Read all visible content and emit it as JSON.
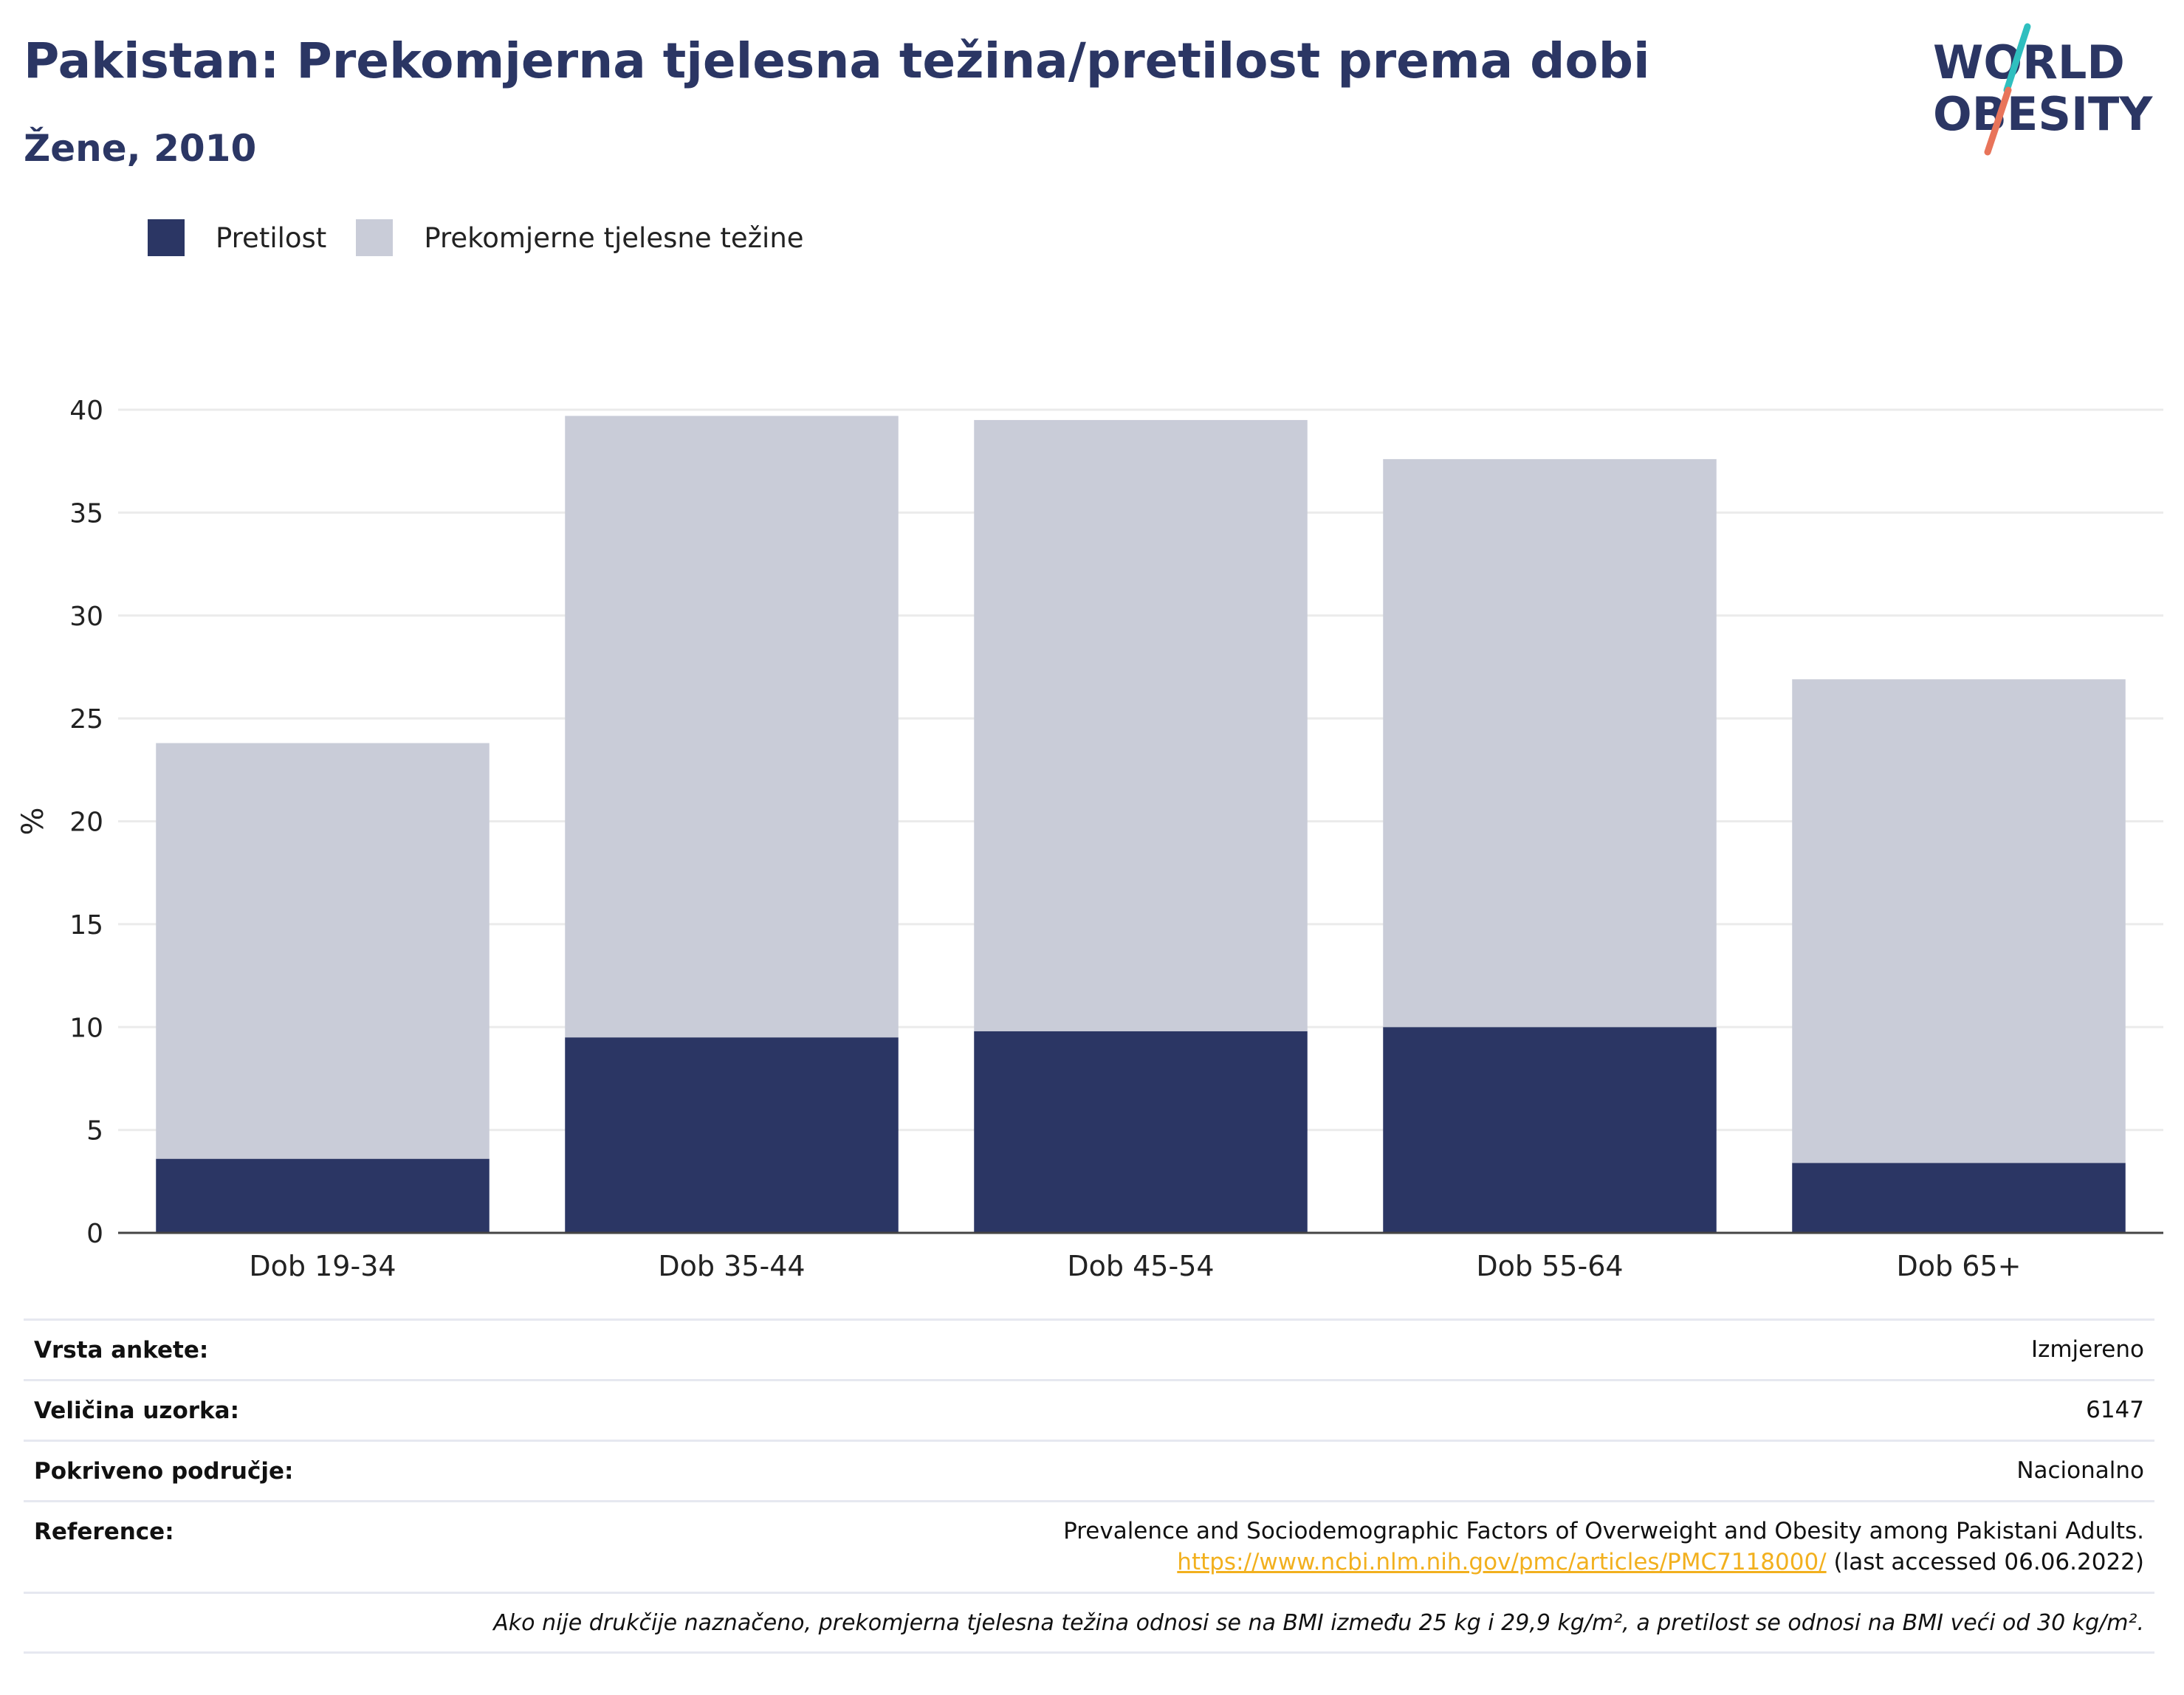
{
  "header": {
    "title": "Pakistan: Prekomjerna tjelesna težina/pretilost prema dobi",
    "subtitle": "Žene, 2010"
  },
  "logo": {
    "line1": "WORLD",
    "line2": "OBESITY"
  },
  "colors": {
    "obesity": "#2b3664",
    "overweight": "#c9ccd8",
    "logo_teal": "#2fbfbf",
    "logo_coral": "#e8745a",
    "link": "#f2b01e"
  },
  "chart_data": {
    "type": "bar",
    "stacked": true,
    "categories": [
      "Dob 19-34",
      "Dob 35-44",
      "Dob 45-54",
      "Dob 55-64",
      "Dob 65+"
    ],
    "series": [
      {
        "name": "Pretilost",
        "values": [
          3.6,
          9.5,
          9.8,
          10.0,
          3.4
        ]
      },
      {
        "name": "Prekomjerne tjelesne težine",
        "values": [
          20.2,
          30.2,
          29.7,
          27.6,
          23.5
        ]
      }
    ],
    "ylabel": "%",
    "ylim": [
      0,
      40
    ],
    "yticks": [
      0,
      5,
      10,
      15,
      20,
      25,
      30,
      35,
      40
    ],
    "grid": true,
    "legend": "top-left"
  },
  "meta": {
    "survey_type_label": "Vrsta ankete:",
    "survey_type_value": "Izmjereno",
    "sample_size_label": "Veličina uzorka:",
    "sample_size_value": "6147",
    "coverage_label": "Pokriveno područje:",
    "coverage_value": "Nacionalno",
    "reference_label": "Reference:",
    "reference_text": "Prevalence and Sociodemographic Factors of Overweight and Obesity among Pakistani Adults.",
    "reference_link": "https://www.ncbi.nlm.nih.gov/pmc/articles/PMC7118000/",
    "reference_accessed": "(last accessed 06.06.2022)",
    "note": "Ako nije drukčije naznačeno, prekomjerna tjelesna težina odnosi se na BMI između 25 kg i 29,9 kg/m², a pretilost se odnosi na BMI veći od 30 kg/m²."
  }
}
